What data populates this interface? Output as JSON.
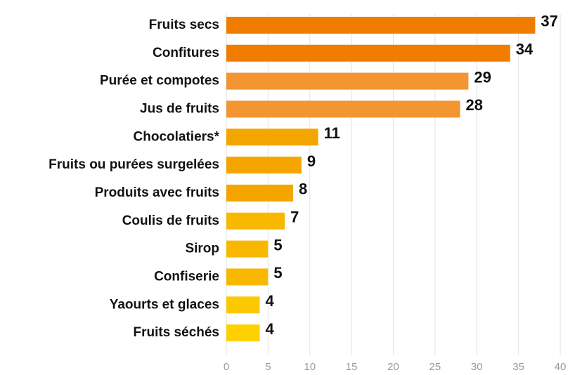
{
  "chart_data": {
    "type": "bar",
    "orientation": "horizontal",
    "categories": [
      "Fruits secs",
      "Confitures",
      "Purée et compotes",
      "Jus de fruits",
      "Chocolatiers*",
      "Fruits ou purées surgelées",
      "Produits avec fruits",
      "Coulis de fruits",
      "Sirop",
      "Confiserie",
      "Yaourts et glaces",
      "Fruits séchés"
    ],
    "values": [
      37,
      34,
      29,
      28,
      11,
      9,
      8,
      7,
      5,
      5,
      4,
      4
    ],
    "colors": [
      "#f07d00",
      "#f07d00",
      "#f39530",
      "#f39530",
      "#f5a500",
      "#f5a500",
      "#f5a500",
      "#f9b800",
      "#f9b800",
      "#f9b800",
      "#fcc800",
      "#fed000"
    ],
    "xlim": [
      0,
      40
    ],
    "xticks": [
      0,
      5,
      10,
      15,
      20,
      25,
      30,
      35,
      40
    ],
    "grid": true
  }
}
